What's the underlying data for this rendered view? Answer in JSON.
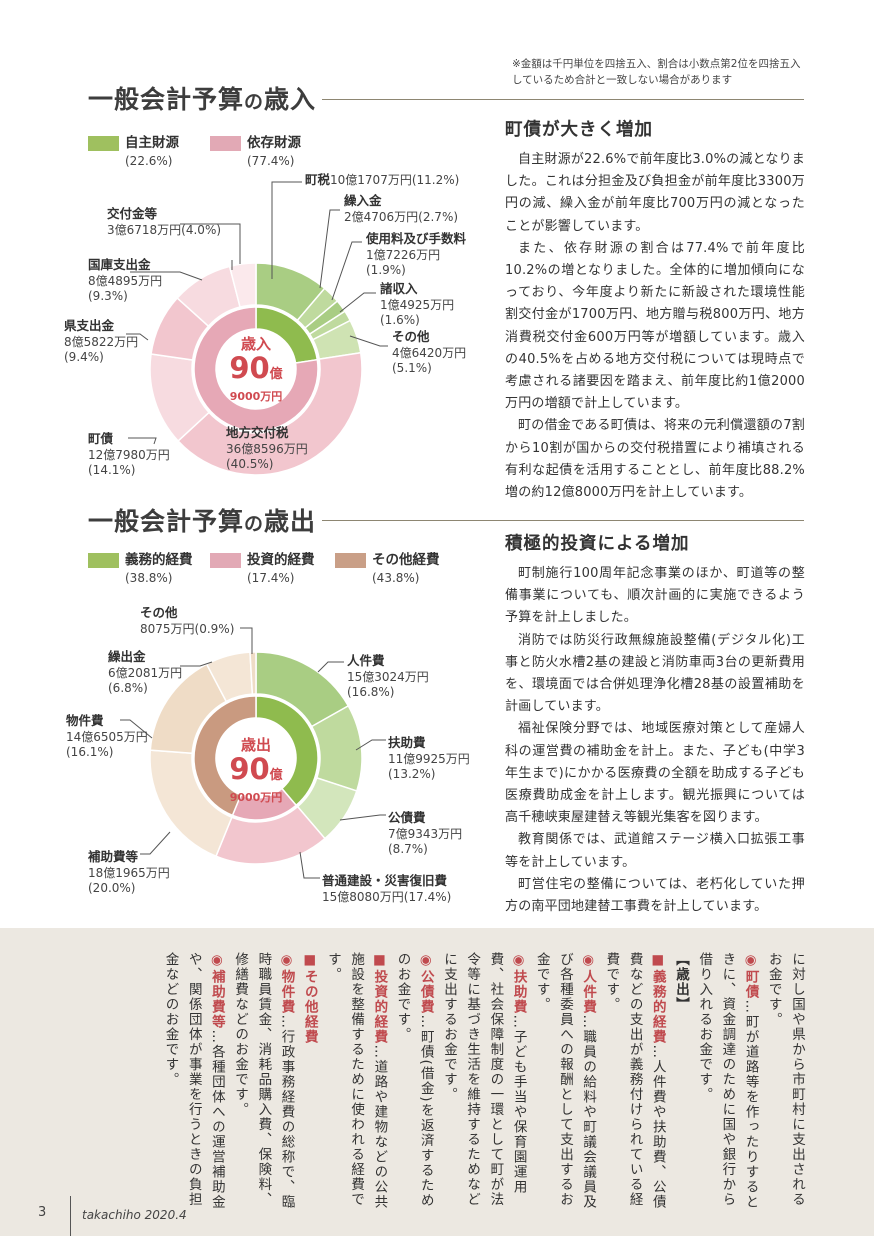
{
  "note": "※金額は千円単位を四捨五入、割合は小数点第2位を四捨五入\nしているため合計と一致しない場合があります",
  "revenue": {
    "title_a": "一般会計予算",
    "title_b": "の",
    "title_c": "歳入",
    "legend": [
      {
        "name": "自主財源",
        "pct": "(22.6%)",
        "color": "#9fc05f"
      },
      {
        "name": "依存財源",
        "pct": "(77.4%)",
        "color": "#e2a9b5"
      }
    ],
    "center": {
      "label": "歳入",
      "value": "90",
      "unit": "億",
      "sub": "9000万円"
    },
    "labels": [
      {
        "name": "町税",
        "amount": "10億1707万円(11.2%)",
        "pct": ""
      },
      {
        "name": "繰入金",
        "amount": "2億4706万円(2.7%)",
        "pct": ""
      },
      {
        "name": "使用料及び手数料",
        "amount": "1億7226万円",
        "pct": "(1.9%)"
      },
      {
        "name": "諸収入",
        "amount": "1億4925万円",
        "pct": "(1.6%)"
      },
      {
        "name": "その他",
        "amount": "4億6420万円",
        "pct": "(5.1%)"
      },
      {
        "name": "地方交付税",
        "amount": "36億8596万円",
        "pct": "(40.5%)"
      },
      {
        "name": "町債",
        "amount": "12億7980万円",
        "pct": "(14.1%)"
      },
      {
        "name": "県支出金",
        "amount": "8億5822万円",
        "pct": "(9.4%)"
      },
      {
        "name": "国庫支出金",
        "amount": "8億4895万円",
        "pct": "(9.3%)"
      },
      {
        "name": "交付金等",
        "amount": "3億6718万円(4.0%)",
        "pct": ""
      }
    ],
    "slices": [
      {
        "value": 11.2,
        "color": "#a9cd83"
      },
      {
        "value": 2.7,
        "color": "#bfda9e"
      },
      {
        "value": 1.9,
        "color": "#a9cd83"
      },
      {
        "value": 1.6,
        "color": "#bfda9e"
      },
      {
        "value": 5.1,
        "color": "#cfe3b3"
      },
      {
        "value": 40.5,
        "color": "#f2c6ce"
      },
      {
        "value": 14.1,
        "color": "#f7dbe0"
      },
      {
        "value": 9.4,
        "color": "#f2c6ce"
      },
      {
        "value": 9.3,
        "color": "#f7dbe0"
      },
      {
        "value": 4.0,
        "color": "#fbe9ec"
      }
    ],
    "inner": [
      {
        "value": 22.6,
        "color": "#8fbb4e"
      },
      {
        "value": 77.4,
        "color": "#e6a8b6"
      }
    ]
  },
  "revenue_article": {
    "title": "町債が大きく増加",
    "paragraphs": [
      "自主財源が22.6%で前年度比3.0%の減となりました。これは分担金及び負担金が前年度比3300万円の減、繰入金が前年度比700万円の減となったことが影響しています。",
      "また、依存財源の割合は77.4%で前年度比10.2%の増となりました。全体的に増加傾向になっており、今年度より新たに新設された環境性能割交付金が1700万円、地方贈与税800万円、地方消費税交付金600万円等が増額しています。歳入の40.5%を占める地方交付税については現時点で考慮される諸要因を踏まえ、前年度比約1億2000万円の増額で計上しています。",
      "町の借金である町債は、将来の元利償還額の7割から10割が国からの交付税措置により補填される有利な起債を活用することとし、前年度比88.2%増の約12億8000万円を計上しています。"
    ]
  },
  "expenditure": {
    "title_a": "一般会計予算",
    "title_b": "の",
    "title_c": "歳出",
    "legend": [
      {
        "name": "義務的経費",
        "pct": "(38.8%)",
        "color": "#9fc05f"
      },
      {
        "name": "投資的経費",
        "pct": "(17.4%)",
        "color": "#e2a9b5"
      },
      {
        "name": "その他経費",
        "pct": "(43.8%)",
        "color": "#c99f87"
      }
    ],
    "center": {
      "label": "歳出",
      "value": "90",
      "unit": "億",
      "sub": "9000万円"
    },
    "labels": [
      {
        "name": "その他",
        "amount": "8075万円(0.9%)",
        "pct": ""
      },
      {
        "name": "繰出金",
        "amount": "6億2081万円",
        "pct": "(6.8%)"
      },
      {
        "name": "人件費",
        "amount": "15億3024万円",
        "pct": "(16.8%)"
      },
      {
        "name": "物件費",
        "amount": "14億6505万円",
        "pct": "(16.1%)"
      },
      {
        "name": "扶助費",
        "amount": "11億9925万円",
        "pct": "(13.2%)"
      },
      {
        "name": "公債費",
        "amount": "7億9343万円",
        "pct": "(8.7%)"
      },
      {
        "name": "補助費等",
        "amount": "18億1965万円",
        "pct": "(20.0%)"
      },
      {
        "name": "普通建設・災害復旧費",
        "amount": "15億8080万円(17.4%)",
        "pct": ""
      }
    ],
    "slices": [
      {
        "value": 16.8,
        "color": "#a9cd83"
      },
      {
        "value": 13.2,
        "color": "#bfda9e"
      },
      {
        "value": 8.7,
        "color": "#d3e6bc"
      },
      {
        "value": 17.4,
        "color": "#f2c6ce"
      },
      {
        "value": 20.0,
        "color": "#f4e6d6"
      },
      {
        "value": 16.1,
        "color": "#efdcc6"
      },
      {
        "value": 6.8,
        "color": "#f4e6d6"
      },
      {
        "value": 0.9,
        "color": "#efdcc6"
      }
    ],
    "inner": [
      {
        "value": 38.8,
        "color": "#8fbb4e"
      },
      {
        "value": 17.4,
        "color": "#e6a8b6"
      },
      {
        "value": 43.8,
        "color": "#c99a80"
      }
    ]
  },
  "expenditure_article": {
    "title": "積極的投資による増加",
    "paragraphs": [
      "町制施行100周年記念事業のほか、町道等の整備事業についても、順次計画的に実施できるよう予算を計上しました。",
      "消防では防災行政無線施設整備(デジタル化)工事と防火水槽2基の建設と消防車両3台の更新費用を、環境面では合併処理浄化槽28基の設置補助を計画しています。",
      "福祉保険分野では、地域医療対策として産婦人科の運営費の補助金を計上。また、子ども(中学3年生まで)にかかる医療費の全額を助成する子ども医療費助成金を計上します。観光振興については高千穂峡東屋建替え等観光集客を図ります。",
      "教育関係では、武道館ステージ横入口拡張工事等を計上しています。",
      "町営住宅の整備については、老朽化していた押方の南平団地建替工事費を計上しています。"
    ]
  },
  "glossary": {
    "col1": "に対し国や県から市町村に支出されるお金です。",
    "col2_mark": "◉",
    "col2_head": "町債",
    "col2_text": "…町が道路等を作ったりするときに、資金調達のために国や銀行から借り入れるお金です。",
    "section": "【歳出】",
    "items": [
      {
        "mark": "■",
        "head": "義務的経費",
        "text": "…人件費や扶助費、公債費などの支出が義務付けられている経費です。"
      },
      {
        "mark": "◉",
        "head": "人件費",
        "text": "…職員の給料や町議会議員及び各種委員への報酬として支出するお金です。"
      },
      {
        "mark": "◉",
        "head": "扶助費",
        "text": "…子ども手当や保育園運用費、社会保障制度の一環として町が法令等に基づき生活を維持するためなどに支出するお金です。"
      },
      {
        "mark": "◉",
        "head": "公債費",
        "text": "…町債(借金)を返済するためのお金です。"
      },
      {
        "mark": "■",
        "head": "投資的経費",
        "text": "…道路や建物などの公共施設を整備するために使われる経費です。"
      },
      {
        "mark": "■",
        "head": "その他経費",
        "text": ""
      },
      {
        "mark": "◉",
        "head": "物件費",
        "text": "…行政事務経費の総称で、臨時職員賃金、消耗品購入費、保険料、修繕費などのお金です。"
      },
      {
        "mark": "◉",
        "head": "補助費等",
        "text": "…各種団体への運営補助金や、関係団体が事業を行うときの負担金などのお金です。"
      }
    ]
  },
  "footer": {
    "page": "3",
    "magazine": "takachiho  2020.4"
  }
}
